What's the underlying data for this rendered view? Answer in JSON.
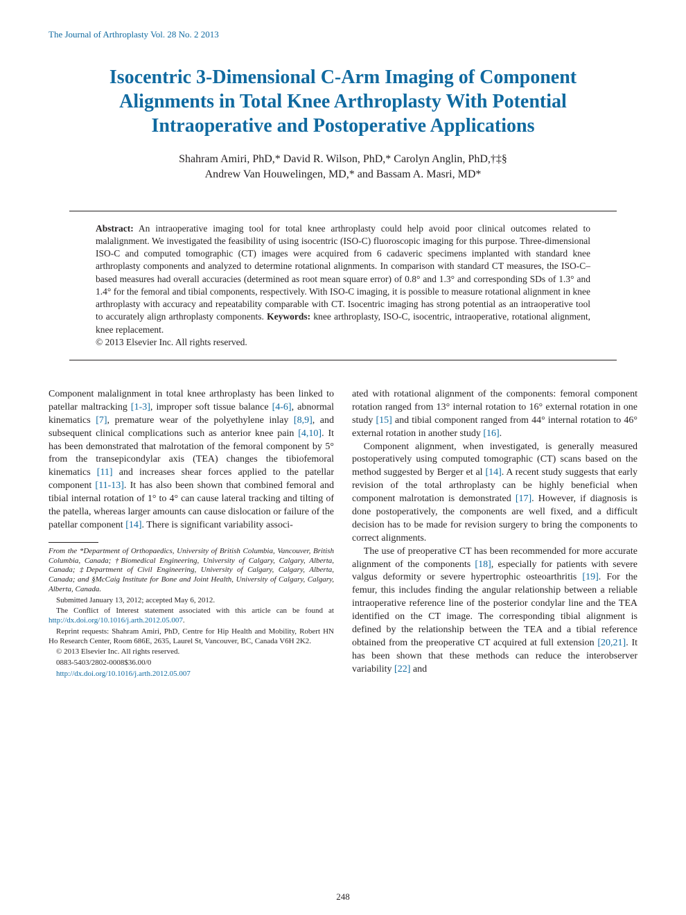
{
  "journal_header": "The Journal of Arthroplasty Vol. 28 No. 2 2013",
  "title": "Isocentric 3-Dimensional C-Arm Imaging of Component Alignments in Total Knee Arthroplasty With Potential Intraoperative and Postoperative Applications",
  "authors_line1": "Shahram Amiri, PhD,* David R. Wilson, PhD,* Carolyn Anglin, PhD,†‡§",
  "authors_line2": "Andrew Van Houwelingen, MD,* and Bassam A. Masri, MD*",
  "abstract": {
    "label": "Abstract:",
    "body": " An intraoperative imaging tool for total knee arthroplasty could help avoid poor clinical outcomes related to malalignment. We investigated the feasibility of using isocentric (ISO-C) fluoroscopic imaging for this purpose. Three-dimensional ISO-C and computed tomographic (CT) images were acquired from 6 cadaveric specimens implanted with standard knee arthroplasty components and analyzed to determine rotational alignments. In comparison with standard CT measures, the ISO-C–based measures had overall accuracies (determined as root mean square error) of 0.8° and 1.3° and corresponding SDs of 1.3° and 1.4° for the femoral and tibial components, respectively. With ISO-C imaging, it is possible to measure rotational alignment in knee arthroplasty with accuracy and repeatability comparable with CT. Isocentric imaging has strong potential as an intraoperative tool to accurately align arthroplasty components. ",
    "keywords_label": "Keywords:",
    "keywords": " knee arthroplasty, ISO-C, isocentric, intraoperative, rotational alignment, knee replacement.",
    "copyright": "© 2013 Elsevier Inc. All rights reserved."
  },
  "left_col": {
    "p1a": "Component malalignment in total knee arthroplasty has been linked to patellar maltracking ",
    "r1": "[1-3]",
    "p1b": ", improper soft tissue balance ",
    "r2": "[4-6]",
    "p1c": ", abnormal kinematics ",
    "r3": "[7]",
    "p1d": ", premature wear of the polyethylene inlay ",
    "r4": "[8,9]",
    "p1e": ", and subsequent clinical complications such as anterior knee pain ",
    "r5": "[4,10]",
    "p1f": ". It has been demonstrated that malrotation of the femoral component by 5° from the transepicondylar axis (TEA) changes the tibiofemoral kinematics ",
    "r6": "[11]",
    "p1g": " and increases shear forces applied to the patellar component ",
    "r7": "[11-13]",
    "p1h": ". It has also been shown that combined femoral and tibial internal rotation of 1° to 4° can cause lateral tracking and tilting of the patella, whereas larger amounts can cause dislocation or failure of the patellar component ",
    "r8": "[14]",
    "p1i": ". There is significant variability associ-"
  },
  "footnotes": {
    "affil": "From the *Department of Orthopaedics, University of British Columbia, Vancouver, British Columbia, Canada; †Biomedical Engineering, University of Calgary, Calgary, Alberta, Canada; ‡Department of Civil Engineering, University of Calgary, Calgary, Alberta, Canada; and §McCaig Institute for Bone and Joint Health, University of Calgary, Calgary, Alberta, Canada.",
    "submitted": "Submitted January 13, 2012; accepted May 6, 2012.",
    "coi_a": "The Conflict of Interest statement associated with this article can be found at ",
    "coi_link": "http://dx.doi.org/10.1016/j.arth.2012.05.007",
    "coi_b": ".",
    "reprint": "Reprint requests: Shahram Amiri, PhD, Centre for Hip Health and Mobility, Robert HN Ho Research Center, Room 686E, 2635, Laurel St, Vancouver, BC, Canada V6H 2K2.",
    "copyright": "© 2013 Elsevier Inc. All rights reserved.",
    "issn": "0883-5403/2802-0008$36.00/0",
    "doi": "http://dx.doi.org/10.1016/j.arth.2012.05.007"
  },
  "right_col": {
    "p1a": "ated with rotational alignment of the components: femoral component rotation ranged from 13° internal rotation to 16° external rotation in one study ",
    "r1": "[15]",
    "p1b": " and tibial component ranged from 44° internal rotation to 46° external rotation in another study ",
    "r2": "[16]",
    "p1c": ".",
    "p2a": "Component alignment, when investigated, is generally measured postoperatively using computed tomographic (CT) scans based on the method suggested by Berger et al ",
    "r3": "[14]",
    "p2b": ". A recent study suggests that early revision of the total arthroplasty can be highly beneficial when component malrotation is demonstrated ",
    "r4": "[17]",
    "p2c": ". However, if diagnosis is done postoperatively, the components are well fixed, and a difficult decision has to be made for revision surgery to bring the components to correct alignments.",
    "p3a": "The use of preoperative CT has been recommended for more accurate alignment of the components ",
    "r5": "[18]",
    "p3b": ", especially for patients with severe valgus deformity or severe hypertrophic osteoarthritis ",
    "r6": "[19]",
    "p3c": ". For the femur, this includes finding the angular relationship between a reliable intraoperative reference line of the posterior condylar line and the TEA identified on the CT image. The corresponding tibial alignment is defined by the relationship between the TEA and a tibial reference obtained from the preoperative CT acquired at full extension ",
    "r7": "[20,21]",
    "p3d": ". It has been shown that these methods can reduce the interobserver variability ",
    "r8": "[22]",
    "p3e": " and"
  },
  "page_number": "248",
  "colors": {
    "link": "#106aa0",
    "text": "#231f20",
    "background": "#ffffff"
  }
}
